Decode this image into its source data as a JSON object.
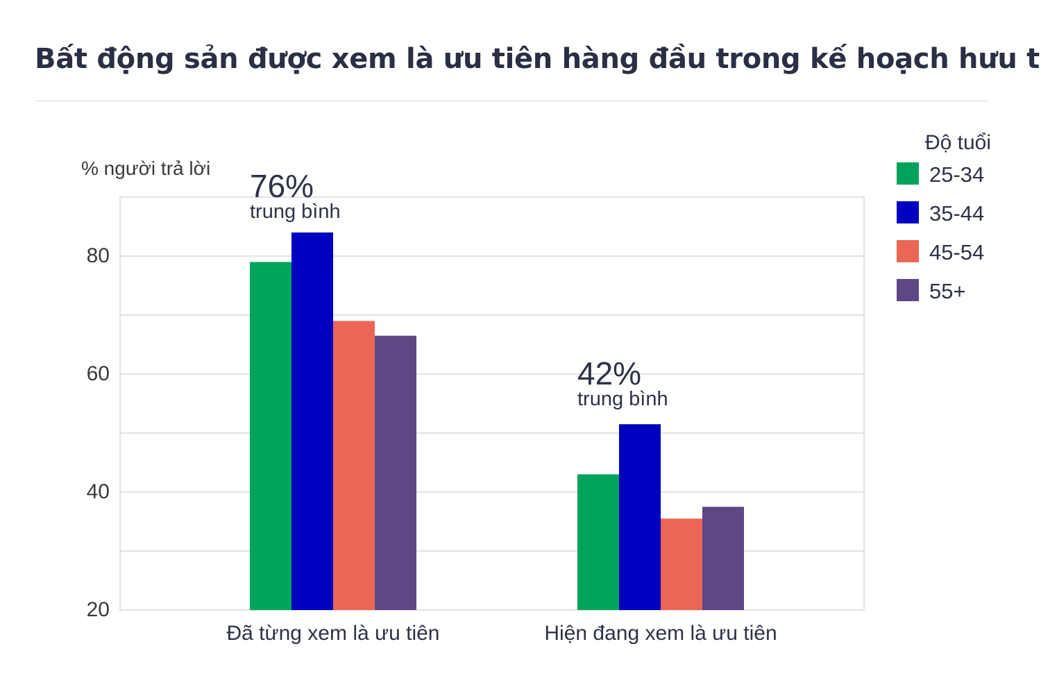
{
  "header": {
    "title": "Bất động sản được xem là ưu tiên hàng đầu trong kế hoạch hưu trí"
  },
  "chart_data": {
    "type": "bar",
    "ylabel": "% người trả lời",
    "ylim": [
      20,
      90
    ],
    "yticks": [
      20,
      40,
      60,
      80
    ],
    "grid": true,
    "categories": [
      "Đã từng xem là ưu tiên",
      "Hiện đang xem là ưu tiên"
    ],
    "series": [
      {
        "name": "25-34",
        "color": "#00a35c",
        "values": [
          79,
          43
        ]
      },
      {
        "name": "35-44",
        "color": "#0000c0",
        "values": [
          84,
          51.5
        ]
      },
      {
        "name": "45-54",
        "color": "#eb6655",
        "values": [
          69,
          35.5
        ]
      },
      {
        "name": "55+",
        "color": "#5d4784",
        "values": [
          66.5,
          37.5
        ]
      }
    ],
    "annotations": [
      {
        "value": "76%",
        "text": "trung bình"
      },
      {
        "value": "42%",
        "text": "trung bình"
      }
    ],
    "legend": {
      "title": "Độ tuổi",
      "placement": "top-right"
    }
  }
}
